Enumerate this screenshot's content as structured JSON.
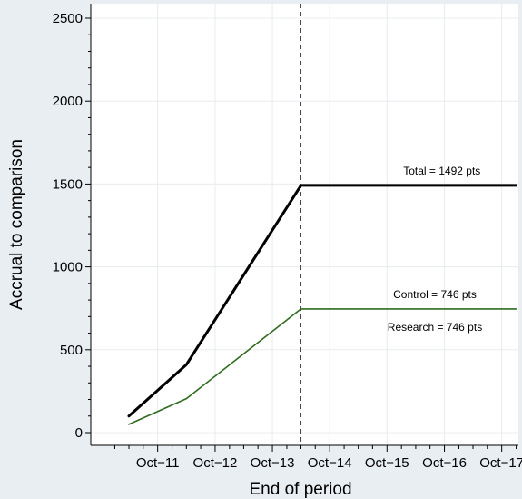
{
  "chart_data": {
    "type": "line",
    "title": "",
    "xlabel": "End of period",
    "ylabel": "Accrual to comparison",
    "ylim": [
      0,
      2500
    ],
    "yticks": [
      0,
      500,
      1000,
      1500,
      2000,
      2500
    ],
    "ytick_labels": [
      "0",
      "500",
      "1000",
      "1500",
      "2000",
      "2500"
    ],
    "xlim": [
      "2010-08-01",
      "2018-01-15"
    ],
    "xticks": [
      "2011-10-01",
      "2012-10-01",
      "2013-10-01",
      "2014-10-01",
      "2015-10-01",
      "2016-10-01",
      "2017-10-01"
    ],
    "xtick_labels": [
      "Oct−11",
      "Oct−12",
      "Oct−13",
      "Oct−14",
      "Oct−15",
      "Oct−16",
      "Oct−17"
    ],
    "grid": true,
    "reference_line": {
      "x": "2014-04-01",
      "style": "dashed"
    },
    "series": [
      {
        "color": "#000000",
        "points": [
          {
            "x": "2011-04-01",
            "y": 100
          },
          {
            "x": "2012-04-01",
            "y": 410
          },
          {
            "x": "2014-04-01",
            "y": 1492
          },
          {
            "x": "2017-12-31",
            "y": 1492
          }
        ]
      },
      {
        "color": "#2e6b1f",
        "points": [
          {
            "x": "2011-04-01",
            "y": 50
          },
          {
            "x": "2012-04-01",
            "y": 205
          },
          {
            "x": "2014-04-01",
            "y": 746
          },
          {
            "x": "2017-12-31",
            "y": 746
          }
        ]
      }
    ],
    "annotations": [
      {
        "text": "Total = 1492 pts",
        "x": "2016-09-15",
        "y": 1492,
        "position": "above"
      },
      {
        "text": "Control = 746 pts",
        "x": "2016-08-01",
        "y": 746,
        "position": "above"
      },
      {
        "text": "Research = 746 pts",
        "x": "2016-08-01",
        "y": 746,
        "position": "below"
      }
    ]
  }
}
